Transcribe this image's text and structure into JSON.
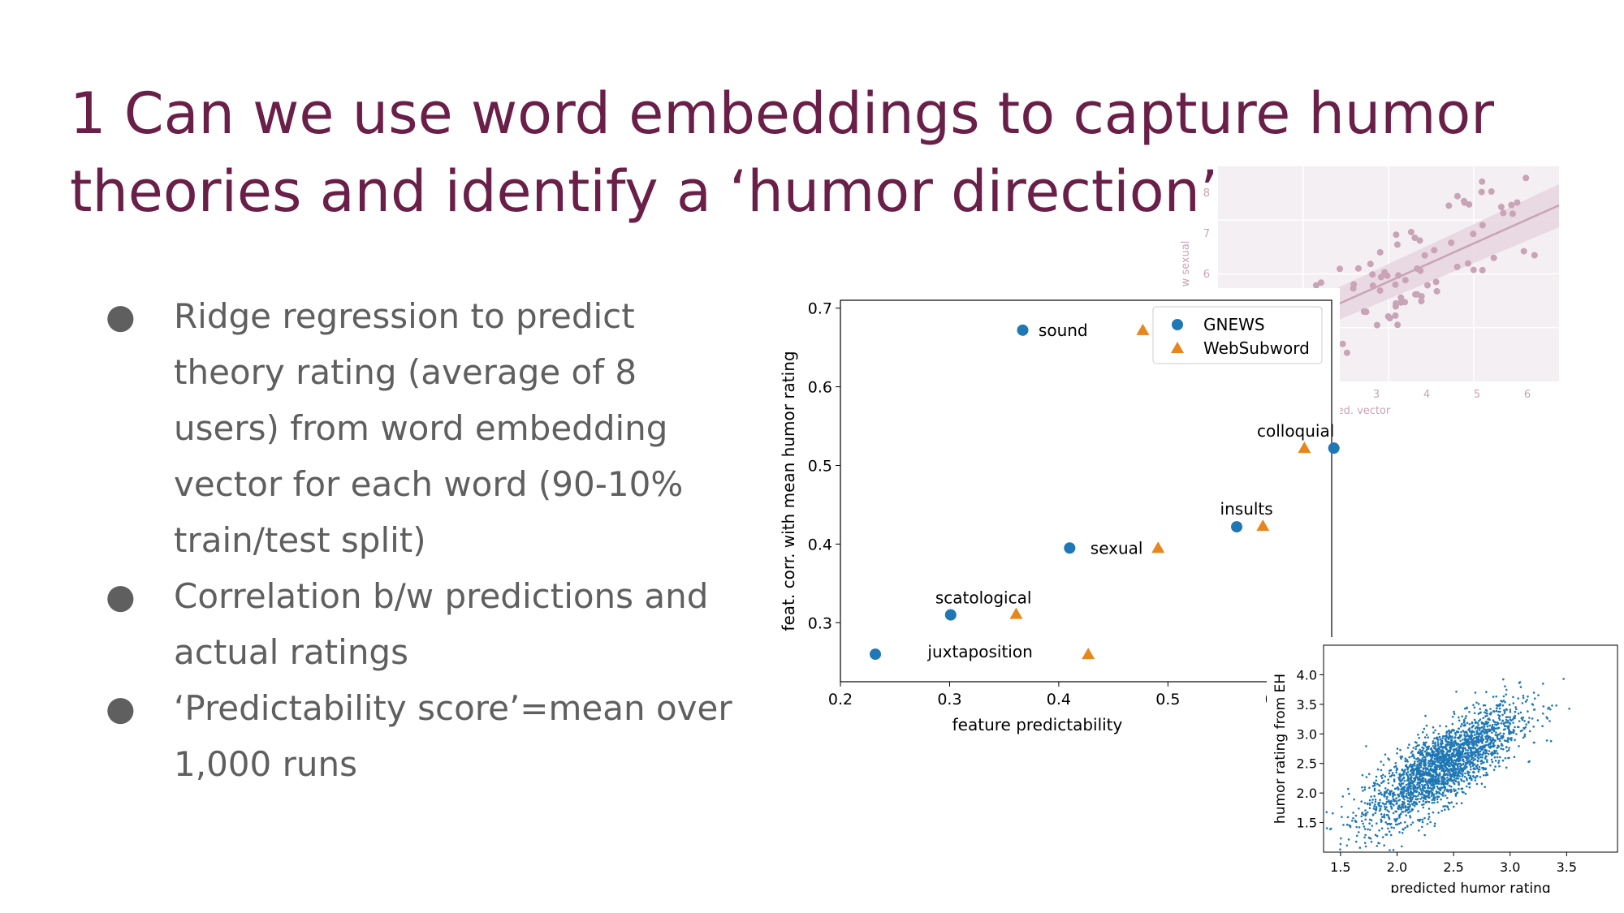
{
  "slide": {
    "title_lines": [
      "1 Can we use word embeddings to capture humor",
      "theories and identify a ‘humor direction’?"
    ],
    "bullets": [
      {
        "lines": [
          "Ridge regression to predict",
          "theory rating (average of 8",
          "users) from word embedding",
          "vector for each word (90-10%",
          "train/test split)"
        ]
      },
      {
        "lines": [
          "Correlation b/w predictions and",
          "actual ratings"
        ]
      },
      {
        "lines": [
          "‘Predictability score’=mean over",
          "1,000 runs"
        ]
      }
    ],
    "bullet_glyph": "●"
  },
  "colors": {
    "title": "#6a1f48",
    "body_text": "#5f5f5f",
    "gnews": "#1f77b4",
    "websubword": "#e6861c",
    "faded_plot": "#c9a3b6"
  },
  "chart_data": [
    {
      "type": "scatter",
      "title": "",
      "xlabel": "feature predictability",
      "ylabel": "feat. corr. with mean humor rating",
      "xlim": [
        0.2,
        0.65
      ],
      "ylim": [
        0.225,
        0.71
      ],
      "xticks": [
        "0.2",
        "0.3",
        "0.4",
        "0.5",
        "0.6"
      ],
      "yticks": [
        "0.3",
        "0.4",
        "0.5",
        "0.6",
        "0.7"
      ],
      "legend": {
        "placement": "top-right",
        "entries": [
          "GNEWS",
          "WebSubword"
        ]
      },
      "series": [
        {
          "name": "GNEWS",
          "marker": "circle",
          "points": [
            {
              "label": "sound",
              "x": 0.367,
              "y": 0.672
            },
            {
              "label": "colloquial",
              "x": 0.652,
              "y": 0.522
            },
            {
              "label": "insults",
              "x": 0.563,
              "y": 0.422
            },
            {
              "label": "sexual",
              "x": 0.41,
              "y": 0.395
            },
            {
              "label": "scatological",
              "x": 0.301,
              "y": 0.31
            },
            {
              "label": "juxtaposition",
              "x": 0.232,
              "y": 0.26
            }
          ]
        },
        {
          "name": "WebSubword",
          "marker": "triangle",
          "points": [
            {
              "label": "sound",
              "x": 0.477,
              "y": 0.672
            },
            {
              "label": "colloquial",
              "x": 0.625,
              "y": 0.522
            },
            {
              "label": "insults",
              "x": 0.587,
              "y": 0.423
            },
            {
              "label": "sexual",
              "x": 0.491,
              "y": 0.395
            },
            {
              "label": "scatological",
              "x": 0.361,
              "y": 0.311
            },
            {
              "label": "juxtaposition",
              "x": 0.427,
              "y": 0.26
            }
          ]
        }
      ],
      "annotations": [
        {
          "text": "sound",
          "x": 0.404,
          "y": 0.672
        },
        {
          "text": "colloquial",
          "x": 0.617,
          "y": 0.544
        },
        {
          "text": "insults",
          "x": 0.572,
          "y": 0.445
        },
        {
          "text": "sexual",
          "x": 0.453,
          "y": 0.395
        },
        {
          "text": "scatological",
          "x": 0.331,
          "y": 0.332
        },
        {
          "text": "juxtaposition",
          "x": 0.328,
          "y": 0.263
        }
      ]
    },
    {
      "type": "scatter",
      "title": "",
      "xlabel": "predicted humor rating",
      "ylabel": "humor rating from EH",
      "xlim": [
        1.35,
        3.95
      ],
      "ylim": [
        1.0,
        4.5
      ],
      "xticks": [
        "1.5",
        "2.0",
        "2.5",
        "3.0",
        "3.5"
      ],
      "yticks": [
        "1.5",
        "2.0",
        "2.5",
        "3.0",
        "3.5",
        "4.0"
      ],
      "series": [
        {
          "name": "",
          "points_summary": "dense cloud of several thousand points; positive correlation",
          "center": [
            2.4,
            2.45
          ],
          "sd_x": 0.34,
          "sd_y": 0.5,
          "correlation": 0.78,
          "n_points": 2400
        }
      ]
    },
    {
      "type": "scatter",
      "title": "",
      "xlabel": "embed. vector",
      "ylabel": "w sexual",
      "faded": true,
      "xticks": [
        "3",
        "4",
        "5",
        "6"
      ],
      "yticks": [
        "6",
        "7",
        "8"
      ],
      "series": [
        {
          "name": "",
          "trend": "positive linear fit with confidence band",
          "n_points": 90
        }
      ]
    }
  ]
}
